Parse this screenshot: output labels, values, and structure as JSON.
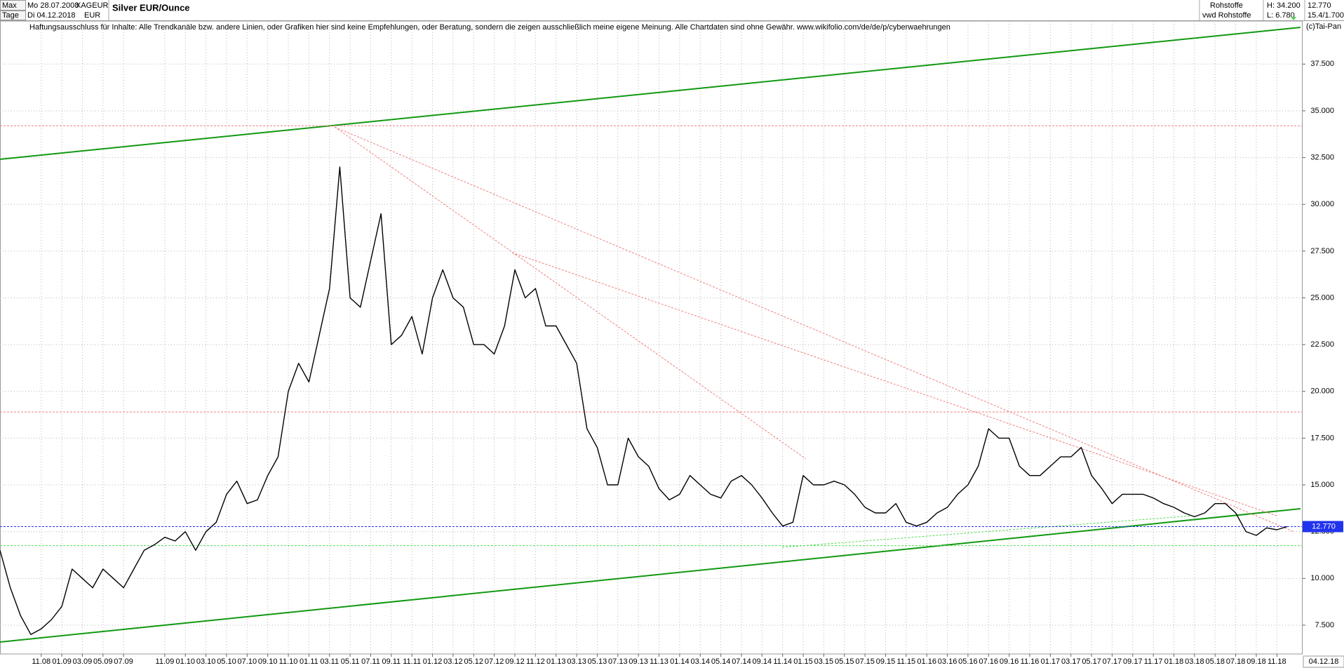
{
  "header": {
    "range": "Max",
    "interval": "Tage",
    "start_date": "Mo 28.07.2008",
    "end_date": "Di 04.12.2018",
    "symbol": "XAGEUR",
    "currency": "EUR",
    "category": "Rohstoffe",
    "source": "vwd Rohstoffe",
    "high": "H: 34.200",
    "low": "L: 6.780",
    "last": "12.770",
    "ratio": "15.4/1.700",
    "disclaimer": "Haftungsausschluss für Inhalte: Alle Trendkanäle bzw. andere Linien, oder Grafiken hier sind keine Empfehlungen, oder Beratung, sondern die zeigen ausschließlich meine eigene Meinung. Alle Chartdaten sind ohne Gewähr.  www.wikifolio.com/de/de/p/cyberwaehrungen",
    "copyright": "(c)Tai-Pan",
    "axis_end_date": "04.12.18"
  },
  "chart_data": {
    "type": "line",
    "title": "Silver EUR/Ounce",
    "x": [
      "2008-07",
      "2008-08",
      "2008-09",
      "2008-10",
      "2008-11",
      "2008-12",
      "2009-01",
      "2009-02",
      "2009-03",
      "2009-04",
      "2009-05",
      "2009-06",
      "2009-07",
      "2009-08",
      "2009-09",
      "2009-10",
      "2009-11",
      "2009-12",
      "2010-01",
      "2010-02",
      "2010-03",
      "2010-04",
      "2010-05",
      "2010-06",
      "2010-07",
      "2010-08",
      "2010-09",
      "2010-10",
      "2010-11",
      "2010-12",
      "2011-01",
      "2011-02",
      "2011-03",
      "2011-04",
      "2011-05",
      "2011-06",
      "2011-07",
      "2011-08",
      "2011-09",
      "2011-10",
      "2011-11",
      "2011-12",
      "2012-01",
      "2012-02",
      "2012-03",
      "2012-04",
      "2012-05",
      "2012-06",
      "2012-07",
      "2012-08",
      "2012-09",
      "2012-10",
      "2012-11",
      "2012-12",
      "2013-01",
      "2013-02",
      "2013-03",
      "2013-04",
      "2013-05",
      "2013-06",
      "2013-07",
      "2013-08",
      "2013-09",
      "2013-10",
      "2013-11",
      "2013-12",
      "2014-01",
      "2014-02",
      "2014-03",
      "2014-04",
      "2014-05",
      "2014-06",
      "2014-07",
      "2014-08",
      "2014-09",
      "2014-10",
      "2014-11",
      "2014-12",
      "2015-01",
      "2015-02",
      "2015-03",
      "2015-04",
      "2015-05",
      "2015-06",
      "2015-07",
      "2015-08",
      "2015-09",
      "2015-10",
      "2015-11",
      "2015-12",
      "2016-01",
      "2016-02",
      "2016-03",
      "2016-04",
      "2016-05",
      "2016-06",
      "2016-07",
      "2016-08",
      "2016-09",
      "2016-10",
      "2016-11",
      "2016-12",
      "2017-01",
      "2017-02",
      "2017-03",
      "2017-04",
      "2017-05",
      "2017-06",
      "2017-07",
      "2017-08",
      "2017-09",
      "2017-10",
      "2017-11",
      "2017-12",
      "2018-01",
      "2018-02",
      "2018-03",
      "2018-04",
      "2018-05",
      "2018-06",
      "2018-07",
      "2018-08",
      "2018-09",
      "2018-10",
      "2018-11",
      "2018-12"
    ],
    "series": [
      {
        "name": "XAGEUR",
        "color": "#000000",
        "values": [
          11.5,
          9.5,
          8.0,
          7.0,
          7.3,
          7.8,
          8.5,
          10.5,
          10.0,
          9.5,
          10.5,
          10.0,
          9.5,
          10.5,
          11.5,
          11.8,
          12.2,
          12.0,
          12.5,
          11.5,
          12.5,
          13.0,
          14.5,
          15.2,
          14.0,
          14.2,
          15.5,
          16.5,
          20.0,
          21.5,
          20.5,
          23.0,
          25.5,
          32.0,
          25.0,
          24.5,
          27.0,
          29.5,
          22.5,
          23.0,
          24.0,
          22.0,
          25.0,
          26.5,
          25.0,
          24.5,
          22.5,
          22.5,
          22.0,
          23.5,
          26.5,
          25.0,
          25.5,
          23.5,
          23.5,
          22.5,
          21.5,
          18.0,
          17.0,
          15.0,
          15.0,
          17.5,
          16.5,
          16.0,
          14.8,
          14.2,
          14.5,
          15.5,
          15.0,
          14.5,
          14.3,
          15.2,
          15.5,
          15.0,
          14.3,
          13.5,
          12.8,
          13.0,
          15.5,
          15.0,
          15.0,
          15.2,
          15.0,
          14.5,
          13.8,
          13.5,
          13.5,
          14.0,
          13.0,
          12.8,
          13.0,
          13.5,
          13.8,
          14.5,
          15.0,
          16.0,
          18.0,
          17.5,
          17.5,
          16.0,
          15.5,
          15.5,
          16.0,
          16.5,
          16.5,
          17.0,
          15.5,
          14.8,
          14.0,
          14.5,
          14.5,
          14.5,
          14.3,
          14.0,
          13.8,
          13.5,
          13.3,
          13.5,
          14.0,
          14.0,
          13.5,
          12.5,
          12.3,
          12.7,
          12.6,
          12.77
        ]
      }
    ],
    "xlim": [
      "2008-07",
      "2018-12"
    ],
    "xticks": [
      {
        "value": "2008-11",
        "label": "11.08"
      },
      {
        "value": "2009-01",
        "label": "01.09"
      },
      {
        "value": "2009-03",
        "label": "03.09"
      },
      {
        "value": "2009-05",
        "label": "05.09"
      },
      {
        "value": "2009-07",
        "label": "07.09"
      },
      {
        "value": "2009-11",
        "label": "11.09"
      },
      {
        "value": "2010-01",
        "label": "01.10"
      },
      {
        "value": "2010-03",
        "label": "03.10"
      },
      {
        "value": "2010-05",
        "label": "05.10"
      },
      {
        "value": "2010-07",
        "label": "07.10"
      },
      {
        "value": "2010-09",
        "label": "09.10"
      },
      {
        "value": "2010-11",
        "label": "11.10"
      },
      {
        "value": "2011-01",
        "label": "01.11"
      },
      {
        "value": "2011-03",
        "label": "03.11"
      },
      {
        "value": "2011-05",
        "label": "05.11"
      },
      {
        "value": "2011-07",
        "label": "07.11"
      },
      {
        "value": "2011-09",
        "label": "09.11"
      },
      {
        "value": "2011-11",
        "label": "11.11"
      },
      {
        "value": "2012-01",
        "label": "01.12"
      },
      {
        "value": "2012-03",
        "label": "03.12"
      },
      {
        "value": "2012-05",
        "label": "05.12"
      },
      {
        "value": "2012-07",
        "label": "07.12"
      },
      {
        "value": "2012-09",
        "label": "09.12"
      },
      {
        "value": "2012-11",
        "label": "11.12"
      },
      {
        "value": "2013-01",
        "label": "01.13"
      },
      {
        "value": "2013-03",
        "label": "03.13"
      },
      {
        "value": "2013-05",
        "label": "05.13"
      },
      {
        "value": "2013-07",
        "label": "07.13"
      },
      {
        "value": "2013-09",
        "label": "09.13"
      },
      {
        "value": "2013-11",
        "label": "11.13"
      },
      {
        "value": "2014-01",
        "label": "01.14"
      },
      {
        "value": "2014-03",
        "label": "03.14"
      },
      {
        "value": "2014-05",
        "label": "05.14"
      },
      {
        "value": "2014-07",
        "label": "07.14"
      },
      {
        "value": "2014-09",
        "label": "09.14"
      },
      {
        "value": "2014-11",
        "label": "11.14"
      },
      {
        "value": "2015-01",
        "label": "01.15"
      },
      {
        "value": "2015-03",
        "label": "03.15"
      },
      {
        "value": "2015-05",
        "label": "05.15"
      },
      {
        "value": "2015-07",
        "label": "07.15"
      },
      {
        "value": "2015-09",
        "label": "09.15"
      },
      {
        "value": "2015-11",
        "label": "11.15"
      },
      {
        "value": "2016-01",
        "label": "01.16"
      },
      {
        "value": "2016-03",
        "label": "03.16"
      },
      {
        "value": "2016-05",
        "label": "05.16"
      },
      {
        "value": "2016-07",
        "label": "07.16"
      },
      {
        "value": "2016-09",
        "label": "09.16"
      },
      {
        "value": "2016-11",
        "label": "11.16"
      },
      {
        "value": "2017-01",
        "label": "01.17"
      },
      {
        "value": "2017-03",
        "label": "03.17"
      },
      {
        "value": "2017-05",
        "label": "05.17"
      },
      {
        "value": "2017-07",
        "label": "07.17"
      },
      {
        "value": "2017-09",
        "label": "09.17"
      },
      {
        "value": "2017-11",
        "label": "11.17"
      },
      {
        "value": "2018-01",
        "label": "01.18"
      },
      {
        "value": "2018-03",
        "label": "03.18"
      },
      {
        "value": "2018-05",
        "label": "05.18"
      },
      {
        "value": "2018-07",
        "label": "07.18"
      },
      {
        "value": "2018-09",
        "label": "09.18"
      },
      {
        "value": "2018-11",
        "label": "11.18"
      }
    ],
    "ylim": [
      5.96,
      39.8
    ],
    "yticks": [
      {
        "value": 7.5,
        "label": "7.500"
      },
      {
        "value": 10,
        "label": "10.000"
      },
      {
        "value": 12.5,
        "label": "12.500"
      },
      {
        "value": 15,
        "label": "15.000"
      },
      {
        "value": 17.5,
        "label": "17.500"
      },
      {
        "value": 20,
        "label": "20.000"
      },
      {
        "value": 22.5,
        "label": "22.500"
      },
      {
        "value": 25,
        "label": "25.000"
      },
      {
        "value": 27.5,
        "label": "27.500"
      },
      {
        "value": 30,
        "label": "30.000"
      },
      {
        "value": 32.5,
        "label": "32.500"
      },
      {
        "value": 35,
        "label": "35.000"
      },
      {
        "value": 37.5,
        "label": "37.500"
      }
    ],
    "grid": true,
    "hlines": [
      {
        "value": 34.2,
        "color": "#f08080"
      },
      {
        "value": 18.9,
        "color": "#f08080"
      },
      {
        "value": 11.75,
        "color": "#55dd55"
      }
    ],
    "last_price": {
      "value": 12.77,
      "label": "12.770",
      "color": "#2233ee"
    }
  }
}
